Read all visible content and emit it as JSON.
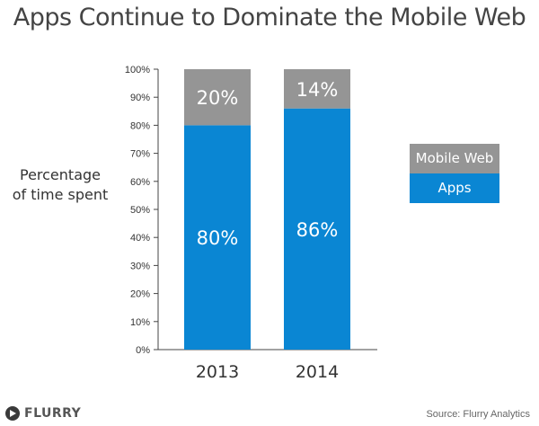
{
  "footer": {
    "logo_text": "FLURRY",
    "source": "Source: Flurry Analytics"
  },
  "colors": {
    "apps": "#0a86d3",
    "mobile_web": "#959595",
    "axis": "#444444",
    "label_on_bar": "#ffffff"
  },
  "chart_data": {
    "type": "bar",
    "stacked": true,
    "title": "Apps Continue to Dominate the Mobile Web",
    "ylabel": "Percentage of time spent",
    "ylabel_lines": [
      "Percentage",
      "of time spent"
    ],
    "xlabel": "",
    "categories": [
      "2013",
      "2014"
    ],
    "series": [
      {
        "name": "Apps",
        "values": [
          80,
          86
        ],
        "labels": [
          "80%",
          "86%"
        ],
        "color": "#0a86d3"
      },
      {
        "name": "Mobile Web",
        "values": [
          20,
          14
        ],
        "labels": [
          "20%",
          "14%"
        ],
        "color": "#959595"
      }
    ],
    "ylim": [
      0,
      100
    ],
    "yticks": [
      0,
      10,
      20,
      30,
      40,
      50,
      60,
      70,
      80,
      90,
      100
    ],
    "ytick_labels": [
      "0%",
      "10%",
      "20%",
      "30%",
      "40%",
      "50%",
      "60%",
      "70%",
      "80%",
      "90%",
      "100%"
    ],
    "legend_entries": [
      "Mobile Web",
      "Apps"
    ],
    "legend_position": "right",
    "grid": false
  }
}
